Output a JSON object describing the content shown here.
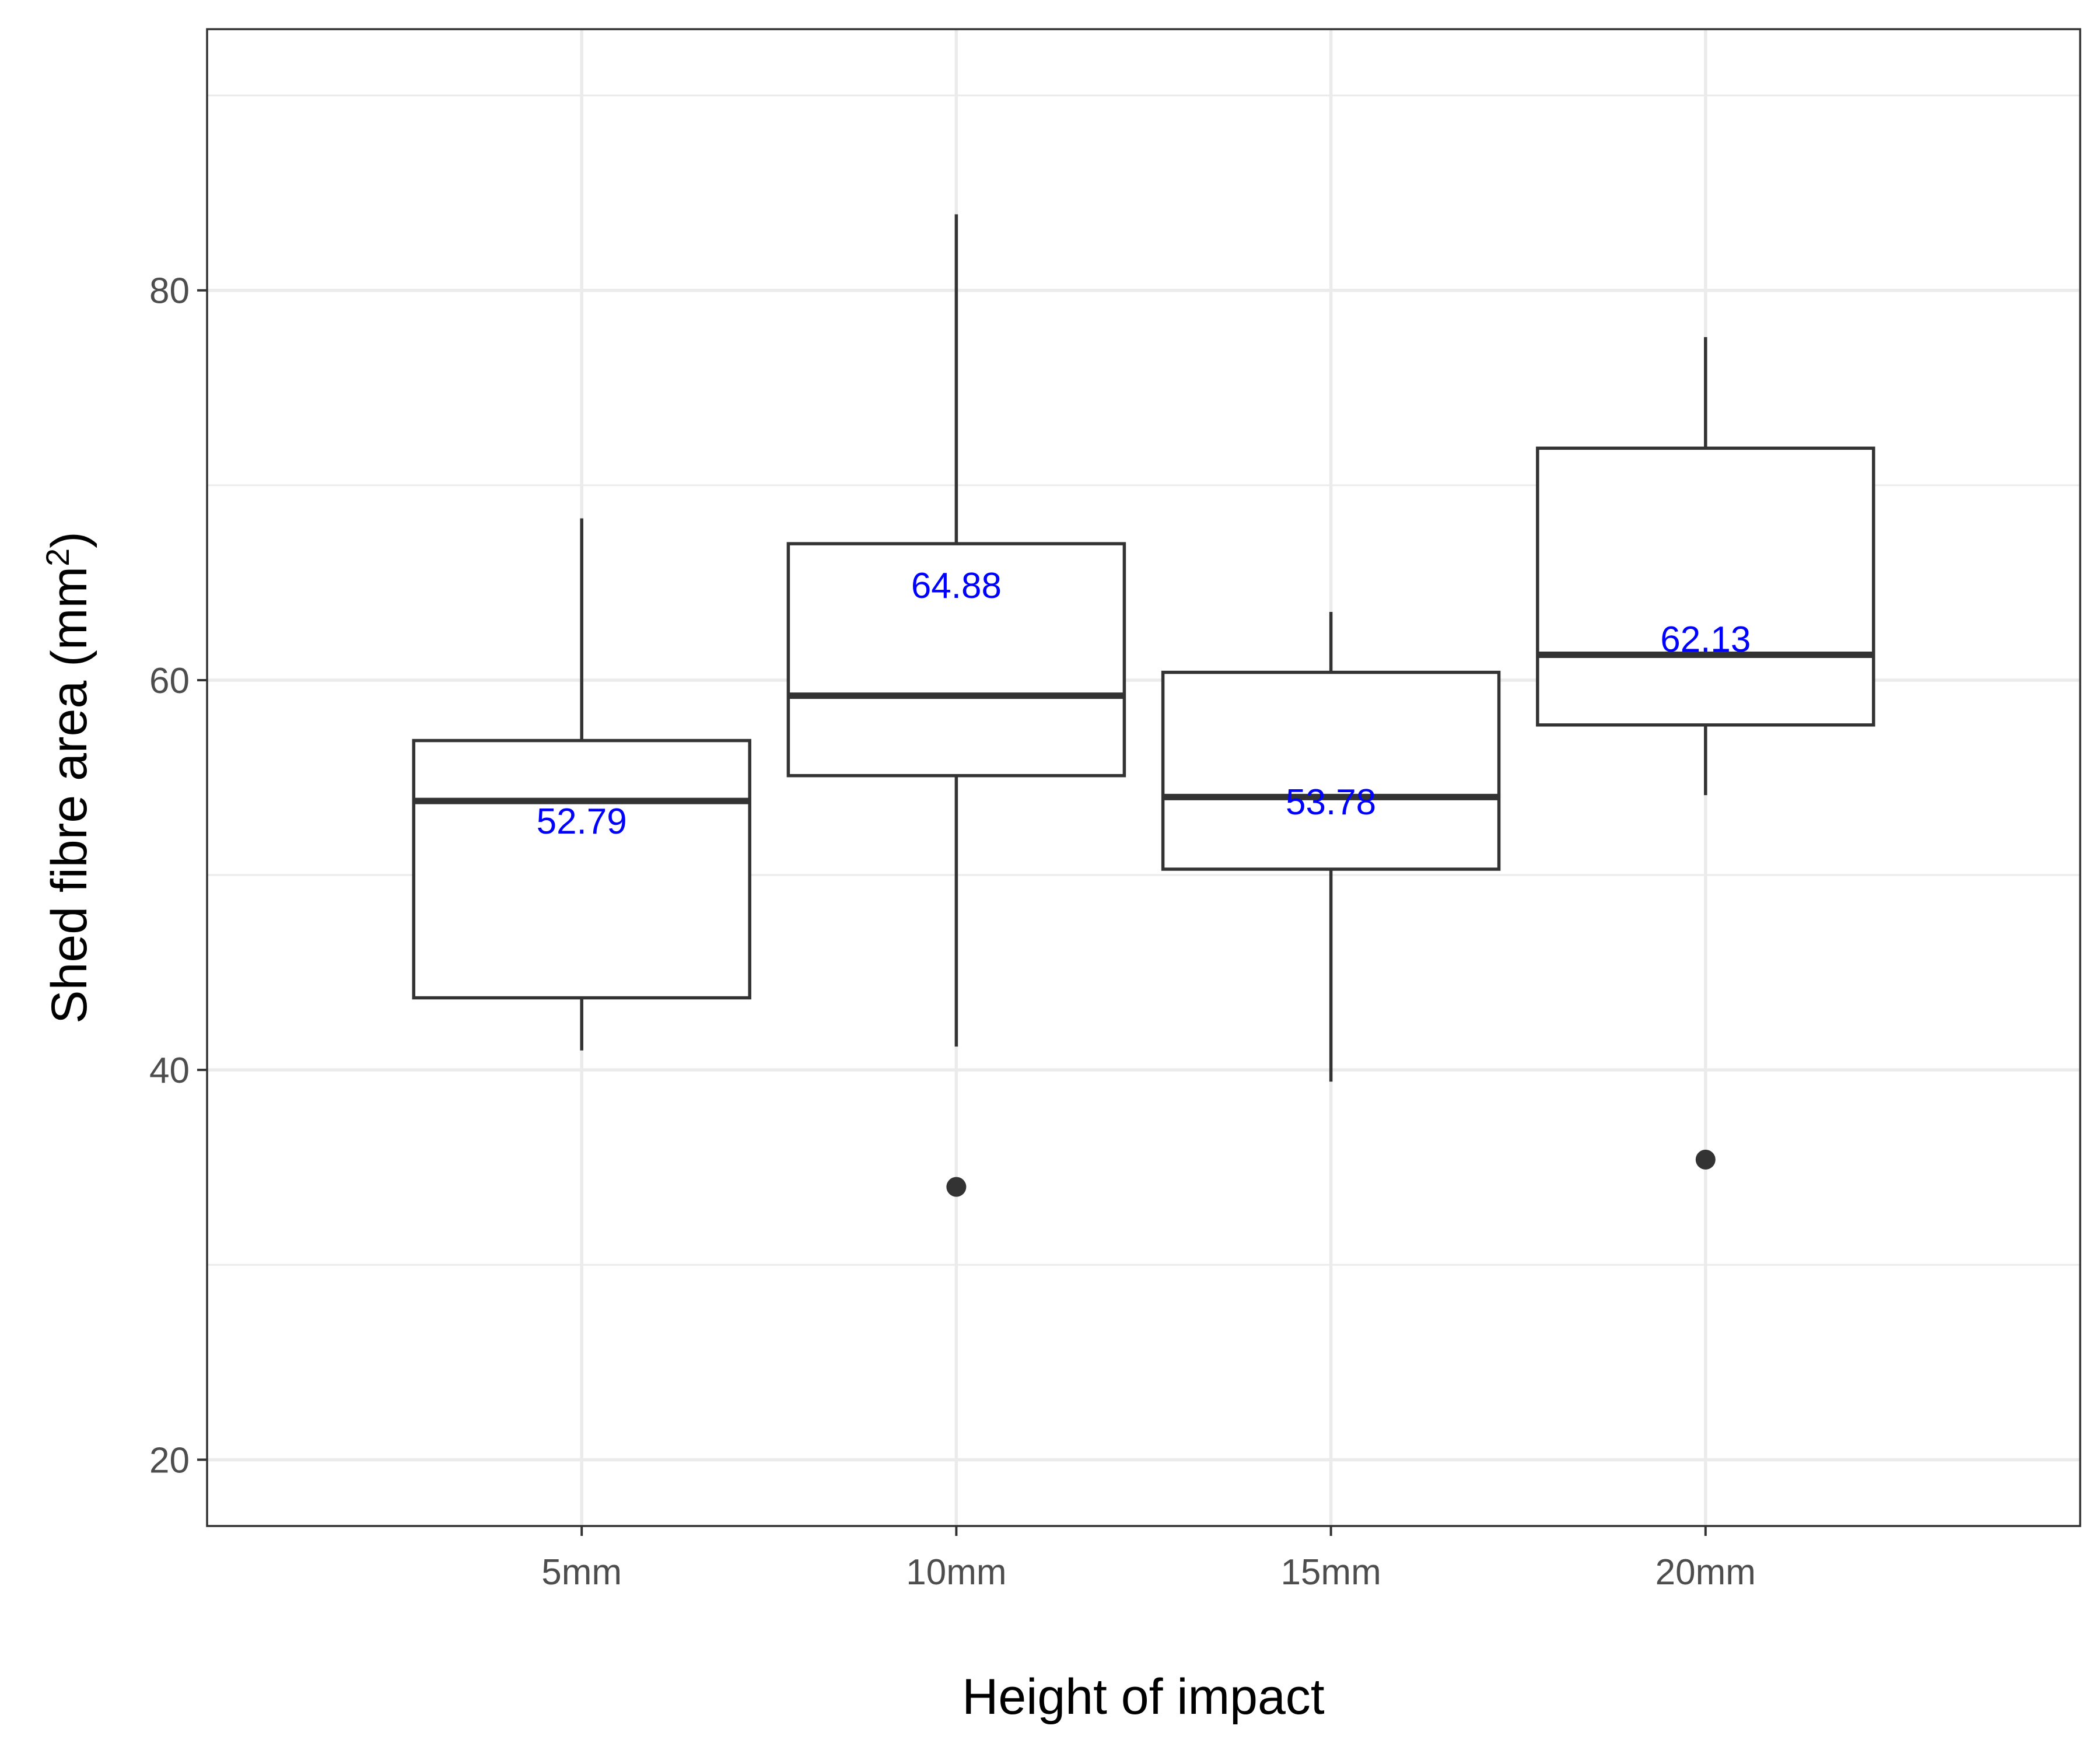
{
  "chart_data": {
    "type": "boxplot",
    "xlabel": "Height of impact",
    "ylabel": "Shed fibre area (mm",
    "ylabel_superscript": "2",
    "ylabel_suffix": ")",
    "ylim": [
      16.6,
      93.4
    ],
    "yticks": [
      20,
      40,
      60,
      80
    ],
    "ytick_labels": [
      "20",
      "40",
      "60",
      "80"
    ],
    "grid": true,
    "colors": {
      "box": "#333333",
      "grid": "#ebebeb",
      "mean_label": "#0000ff",
      "tick_text": "#4d4d4d"
    },
    "categories": [
      "5mm",
      "10mm",
      "15mm",
      "20mm"
    ],
    "boxes": [
      {
        "category": "5mm",
        "whisker_low": 41.0,
        "q1": 43.7,
        "median": 53.8,
        "q3": 56.9,
        "whisker_high": 68.3,
        "outliers": [],
        "mean": 52.79,
        "mean_label": "52.79"
      },
      {
        "category": "10mm",
        "whisker_low": 41.2,
        "q1": 55.1,
        "median": 59.2,
        "q3": 67.0,
        "whisker_high": 83.9,
        "outliers": [
          34.0
        ],
        "mean": 64.88,
        "mean_label": "64.88"
      },
      {
        "category": "15mm",
        "whisker_low": 39.4,
        "q1": 50.3,
        "median": 54.0,
        "q3": 60.4,
        "whisker_high": 63.5,
        "outliers": [],
        "mean": 53.78,
        "mean_label": "53.78"
      },
      {
        "category": "20mm",
        "whisker_low": 54.1,
        "q1": 57.7,
        "median": 61.3,
        "q3": 71.9,
        "whisker_high": 77.6,
        "outliers": [
          35.4
        ],
        "mean": 62.13,
        "mean_label": "62.13"
      }
    ]
  }
}
